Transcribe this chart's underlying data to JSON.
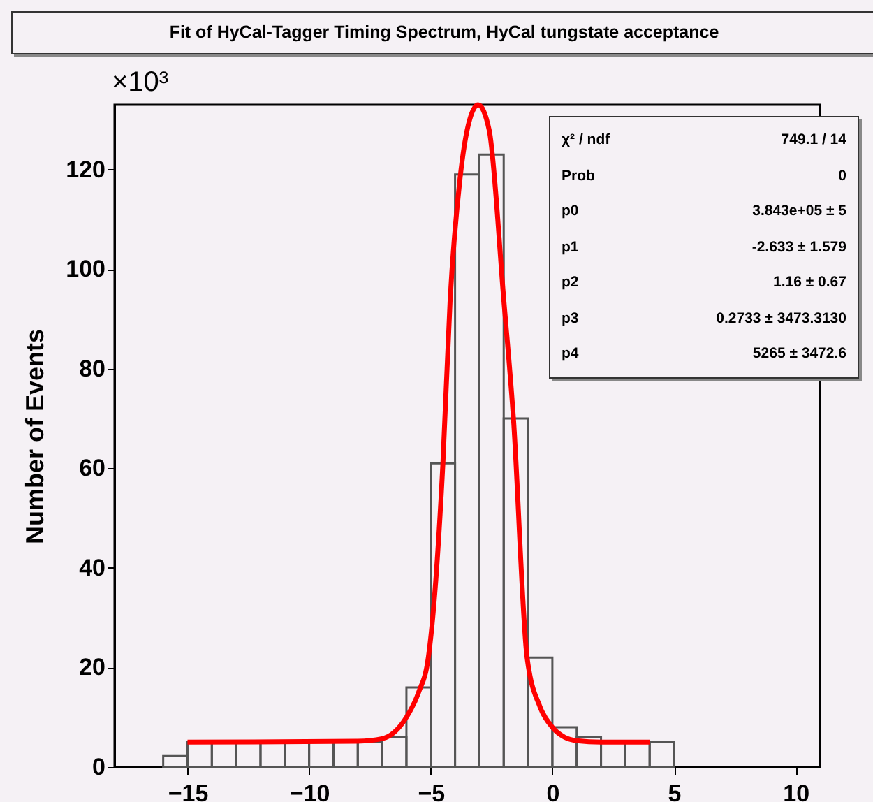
{
  "chart_data": {
    "type": "histogram",
    "title": "Fit of HyCal-Tagger Timing Spectrum, HyCal tungstate acceptance",
    "ylabel": "Number of Events",
    "bins": [
      -16,
      -15,
      -14,
      -13,
      -12,
      -11,
      -10,
      -9,
      -8,
      -7,
      -6,
      -5,
      -4,
      -3,
      -2,
      -1,
      0,
      1,
      2,
      3,
      4,
      5
    ],
    "values": [
      2.2,
      5,
      5,
      5,
      5,
      5,
      5,
      5,
      5,
      6,
      16,
      61,
      119,
      123,
      70,
      22,
      8,
      6,
      5,
      5,
      5
    ],
    "color": "#555555",
    "series": [
      {
        "type": "line",
        "color": "#ff0000",
        "x": [
          -15,
          -8,
          -7,
          -6.5,
          -6,
          -5.5,
          -5.1,
          -4.5,
          -4.2,
          -3.8,
          -3.4,
          -3.05,
          -2.6,
          -2,
          -1.6,
          -1.04,
          -0.5,
          0,
          0.5,
          1,
          2,
          4
        ],
        "values": [
          5,
          5.2,
          5.7,
          7,
          10,
          15,
          22,
          61,
          94,
          118,
          130,
          133,
          128,
          94,
          70,
          22,
          12,
          8,
          6,
          5.3,
          5,
          5
        ]
      }
    ],
    "xlim": [
      -18,
      11
    ],
    "xticks": [
      -15,
      -10,
      -5,
      0,
      5,
      10
    ],
    "ylim": [
      0,
      133
    ],
    "yticks": [
      0,
      20,
      40,
      60,
      80,
      100,
      120
    ],
    "grid": false,
    "annotations": [
      "×10³",
      "χ² / ndf",
      "749.1 / 14",
      "Prob",
      "0",
      "p0",
      "3.843e+05 ± 5",
      "p1",
      "-2.633 ± 1.579",
      "p2",
      "1.16 ± 0.67",
      "p3",
      "0.2733 ± 3473.3130",
      "p4",
      "5265 ± 3472.6"
    ]
  }
}
